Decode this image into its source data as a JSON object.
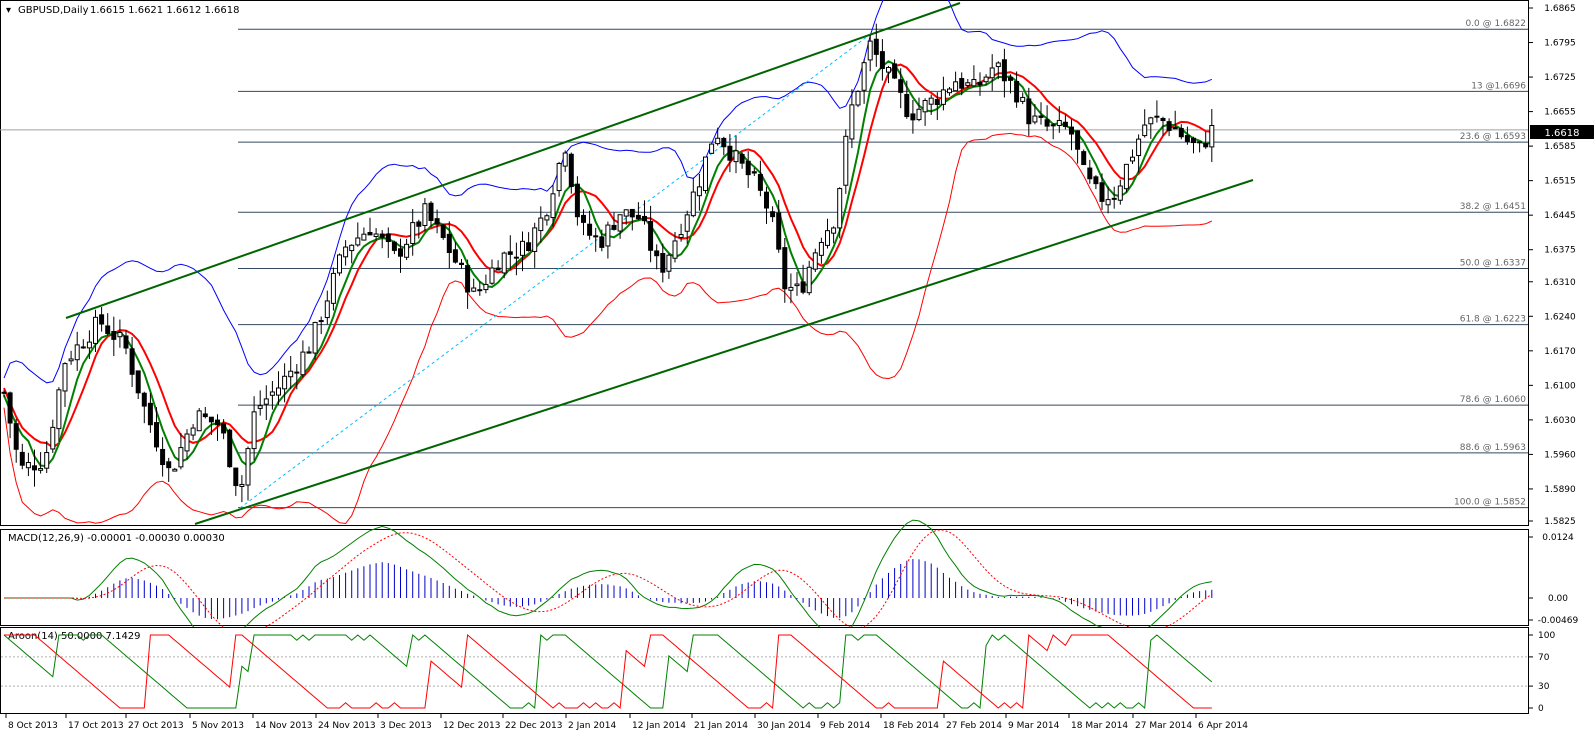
{
  "header": {
    "symbol_label": "GBPUSD,Daily",
    "ohlc_label": "1.6615 1.6621 1.6612 1.6618"
  },
  "price_axis": {
    "ticks": [
      "1.6865",
      "1.6795",
      "1.6725",
      "1.6655",
      "1.6585",
      "1.6515",
      "1.6445",
      "1.6375",
      "1.6310",
      "1.6240",
      "1.6170",
      "1.6100",
      "1.6030",
      "1.5960",
      "1.5890",
      "1.5825"
    ],
    "current_price_label": "1.6618"
  },
  "fib_levels": [
    {
      "label": "0.0 @ 1.6822",
      "price": 1.6822
    },
    {
      "label": "13 @1.6696",
      "price": 1.6696
    },
    {
      "label": "23.6 @ 1.6593",
      "price": 1.6593
    },
    {
      "label": "38.2 @ 1.6451",
      "price": 1.6451
    },
    {
      "label": "50.0 @ 1.6337",
      "price": 1.6337
    },
    {
      "label": "61.8 @ 1.6223",
      "price": 1.6223
    },
    {
      "label": "78.6 @ 1.6060",
      "price": 1.606
    },
    {
      "label": "88.6 @ 1.5963",
      "price": 1.5963
    },
    {
      "label": "100.0 @ 1.5852",
      "price": 1.5852
    }
  ],
  "macd": {
    "label": "MACD(12,26,9) -0.00001 -0.00030 0.00030",
    "ticks": [
      "0.0124",
      "0.00",
      "-0.00469"
    ]
  },
  "aroon": {
    "label": "Aroon(14) 50.0000 7.1429",
    "ticks": [
      "100",
      "70",
      "30",
      "0"
    ]
  },
  "date_axis": {
    "labels": [
      "8 Oct 2013",
      "17 Oct 2013",
      "27 Oct 2013",
      "5 Nov 2013",
      "14 Nov 2013",
      "24 Nov 2013",
      "3 Dec 2013",
      "12 Dec 2013",
      "22 Dec 2013",
      "2 Jan 2014",
      "12 Jan 2014",
      "21 Jan 2014",
      "30 Jan 2014",
      "9 Feb 2014",
      "18 Feb 2014",
      "27 Feb 2014",
      "9 Mar 2014",
      "18 Mar 2014",
      "27 Mar 2014",
      "6 Apr 2014"
    ]
  },
  "colors": {
    "candle": "#000000",
    "up_band": "#0000ff",
    "low_band": "#ff0000",
    "ma_red": "#ff0000",
    "ma_green": "#008000",
    "ma_highlight": "#ffff00",
    "channel": "#006400",
    "diagonal": "#00bfff",
    "fib": "#34495e",
    "macd_line": "#008000",
    "macd_signal": "#ff0000",
    "macd_hist": "#0000cc",
    "aroon_up": "#008000",
    "aroon_down": "#ff0000"
  }
}
